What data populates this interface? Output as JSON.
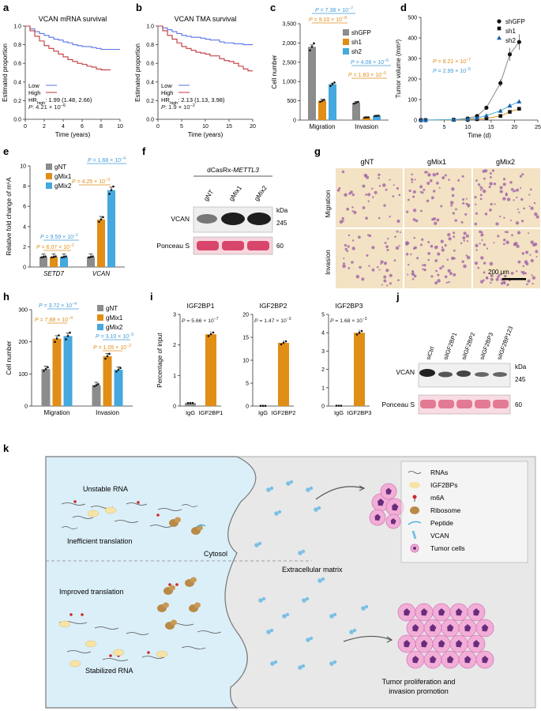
{
  "panel_letters": [
    "a",
    "b",
    "c",
    "d",
    "e",
    "f",
    "g",
    "h",
    "i",
    "j",
    "k"
  ],
  "colors": {
    "low_blue": "#5a74e6",
    "high_red": "#c0373a",
    "gray": "#8c8c8c",
    "orange": "#e08e16",
    "blue": "#45a8de",
    "pval_blue": "#3f9ad8",
    "pval_orange": "#e08e16",
    "cell_bg": "#dff0f8",
    "ecm_bg": "#e9e9e9",
    "ponceau": "#e56f8e",
    "tumor_pink": "#f2aed6",
    "tumor_core": "#6a2d7d"
  },
  "panel_a": {
    "title": "VCAN mRNA survival",
    "ylabel": "Estimated proportion",
    "xlabel": "Time (years)",
    "legend": [
      "Low",
      "High"
    ],
    "hr_label": "HR",
    "hr_sub": "high",
    "hr_value": ": 1.99 (1.48, 2.66)",
    "p_text": "P: 4.21 × 10",
    "p_exp": "−6"
  },
  "panel_b": {
    "title": "VCAN TMA survival",
    "ylabel": "Estimated proportion",
    "xlabel": "Time (years)",
    "legend": [
      "Low",
      "High"
    ],
    "hr_label": "HR",
    "hr_sub": "high",
    "hr_value": ": 2.13 (1.13, 3.98)",
    "p_text": "P: 1.9 × 10",
    "p_exp": "−2"
  },
  "panel_d": {
    "ylabel": "Tumor volume (mm³)",
    "xlabel": "Time (d)",
    "legend": [
      "shGFP",
      "sh1",
      "sh2"
    ],
    "p1": "P = 8.21 × 10",
    "p1_exp": "−7",
    "p2": "P = 2.99 × 10",
    "p2_exp": "−5"
  },
  "panel_f": {
    "header": "dCasRx-",
    "header_gene": "METTL3",
    "lanes": [
      "gNT",
      "gMix1",
      "gMix2"
    ],
    "rows": [
      "VCAN",
      "Ponceau S"
    ],
    "kda": "kDa",
    "mw": [
      "245",
      "60"
    ]
  },
  "panel_g": {
    "cols": [
      "gNT",
      "gMix1",
      "gMix2"
    ],
    "rows": [
      "Migration",
      "Invasion"
    ],
    "scale": "200 μm"
  },
  "panel_j": {
    "lanes": [
      "siCtrl",
      "siIGF2BP1",
      "siIGF2BP2",
      "siIGF2BP3",
      "siIGF2BP123"
    ],
    "rows": [
      "VCAN",
      "Ponceau S"
    ],
    "kda": "kDa",
    "mw": [
      "245",
      "60"
    ]
  },
  "panel_k": {
    "unstable": "Unstable RNA",
    "inefficient": "Inefficient translation",
    "cytosol": "Cytosol",
    "improved": "Improved translation",
    "stabilized": "Stabilized RNA",
    "ecm": "Extracellular matrix",
    "tumor": "Tumor proliferation and",
    "tumor2": "invasion promotion",
    "legend": [
      "RNAs",
      "IGF2BPs",
      "m6A",
      "Ribosome",
      "Peptide",
      "VCAN",
      "Tumor cells"
    ]
  },
  "chart_data": [
    {
      "panel": "a",
      "type": "line",
      "title": "VCAN mRNA survival",
      "xlabel": "Time (years)",
      "ylabel": "Estimated proportion",
      "xlim": [
        0,
        10
      ],
      "ylim": [
        0,
        1.0
      ],
      "xticks": [
        0,
        2,
        4,
        6,
        8,
        10
      ],
      "yticks": [
        0,
        0.2,
        0.4,
        0.6,
        0.8,
        1.0
      ],
      "series": [
        {
          "name": "Low",
          "x": [
            0,
            0.5,
            1,
            1.5,
            2,
            2.5,
            3,
            3.5,
            4,
            4.5,
            5,
            5.5,
            6,
            6.5,
            7,
            7.5,
            8,
            8.5,
            9,
            9.5,
            10
          ],
          "y": [
            1.0,
            0.97,
            0.94,
            0.92,
            0.9,
            0.88,
            0.86,
            0.85,
            0.83,
            0.82,
            0.8,
            0.79,
            0.78,
            0.78,
            0.77,
            0.76,
            0.75,
            0.75,
            0.75,
            0.75,
            0.75
          ]
        },
        {
          "name": "High",
          "x": [
            0,
            0.5,
            1,
            1.5,
            2,
            2.5,
            3,
            3.5,
            4,
            4.5,
            5,
            5.5,
            6,
            6.5,
            7,
            7.5,
            8,
            8.5,
            9
          ],
          "y": [
            1.0,
            0.95,
            0.89,
            0.84,
            0.79,
            0.76,
            0.73,
            0.7,
            0.67,
            0.64,
            0.62,
            0.6,
            0.59,
            0.57,
            0.56,
            0.54,
            0.53,
            0.53,
            0.53
          ]
        }
      ]
    },
    {
      "panel": "b",
      "type": "line",
      "title": "VCAN TMA survival",
      "xlabel": "Time (years)",
      "ylabel": "Estimated proportion",
      "xlim": [
        0,
        20
      ],
      "ylim": [
        0,
        1.0
      ],
      "xticks": [
        0,
        5,
        10,
        15,
        20
      ],
      "yticks": [
        0,
        0.2,
        0.4,
        0.6,
        0.8,
        1.0
      ],
      "series": [
        {
          "name": "Low",
          "x": [
            0,
            1,
            2,
            3,
            4,
            5,
            6,
            7,
            8,
            9,
            10,
            11,
            12,
            13,
            14,
            15,
            16,
            17,
            18,
            19,
            20
          ],
          "y": [
            1.0,
            0.98,
            0.96,
            0.94,
            0.92,
            0.9,
            0.89,
            0.88,
            0.88,
            0.87,
            0.86,
            0.85,
            0.85,
            0.83,
            0.82,
            0.82,
            0.81,
            0.81,
            0.8,
            0.8,
            0.8
          ]
        },
        {
          "name": "High",
          "x": [
            0,
            1,
            2,
            3,
            4,
            5,
            6,
            7,
            8,
            9,
            10,
            11,
            12,
            13,
            14,
            15,
            16,
            17,
            18,
            19,
            20
          ],
          "y": [
            1.0,
            0.95,
            0.9,
            0.86,
            0.82,
            0.78,
            0.76,
            0.74,
            0.72,
            0.71,
            0.7,
            0.68,
            0.68,
            0.65,
            0.63,
            0.62,
            0.6,
            0.57,
            0.54,
            0.52,
            0.52
          ]
        }
      ]
    },
    {
      "panel": "c",
      "type": "bar",
      "ylabel": "Cell number",
      "categories": [
        "Migration",
        "Invasion"
      ],
      "ylim": [
        0,
        2500
      ],
      "yticks": [
        0,
        500,
        1000,
        1500,
        2000,
        2500
      ],
      "series": [
        {
          "name": "shGFP",
          "values": [
            1900,
            450
          ],
          "err": [
            50,
            30
          ]
        },
        {
          "name": "sh1",
          "values": [
            500,
            70
          ],
          "err": [
            40,
            15
          ]
        },
        {
          "name": "sh2",
          "values": [
            930,
            110
          ],
          "err": [
            30,
            15
          ]
        }
      ],
      "annotations": [
        {
          "text": "P = 7.38 × 10",
          "exp": "−7",
          "color": "blue"
        },
        {
          "text": "P = 9.10 × 10",
          "exp": "−8",
          "color": "orange"
        },
        {
          "text": "P = 4.08 × 10",
          "exp": "−5",
          "color": "blue"
        },
        {
          "text": "P = 1.83 × 10",
          "exp": "−6",
          "color": "orange"
        }
      ]
    },
    {
      "panel": "d",
      "type": "line",
      "xlabel": "Time (d)",
      "ylabel": "Tumor volume (mm³)",
      "xlim": [
        0,
        25
      ],
      "ylim": [
        0,
        500
      ],
      "xticks": [
        0,
        5,
        10,
        15,
        20,
        25
      ],
      "yticks": [
        0,
        100,
        200,
        300,
        400,
        500
      ],
      "series": [
        {
          "name": "shGFP",
          "x": [
            0,
            1,
            7,
            10,
            12,
            14,
            17,
            19,
            21
          ],
          "y": [
            0,
            0,
            2,
            8,
            20,
            60,
            180,
            320,
            380
          ]
        },
        {
          "name": "sh1",
          "x": [
            0,
            1,
            7,
            10,
            12,
            14,
            17,
            19,
            21
          ],
          "y": [
            0,
            0,
            1,
            2,
            4,
            8,
            20,
            40,
            55
          ]
        },
        {
          "name": "sh2",
          "x": [
            0,
            1,
            7,
            10,
            12,
            14,
            17,
            19,
            21
          ],
          "y": [
            0,
            0,
            2,
            5,
            10,
            22,
            45,
            70,
            90
          ]
        }
      ]
    },
    {
      "panel": "e",
      "type": "bar",
      "ylabel": "Relative fold change of m⁶A",
      "categories": [
        "SETD7",
        "VCAN"
      ],
      "ylim": [
        0,
        10
      ],
      "yticks": [
        0,
        2,
        4,
        6,
        8,
        10
      ],
      "series": [
        {
          "name": "gNT",
          "values": [
            1.0,
            1.0
          ]
        },
        {
          "name": "gMix1",
          "values": [
            1.0,
            4.7
          ]
        },
        {
          "name": "gMix2",
          "values": [
            1.0,
            7.6
          ]
        }
      ],
      "annotations": [
        {
          "text": "P = 1.68 × 10",
          "exp": "−4",
          "color": "blue"
        },
        {
          "text": "P = 4.25 × 10",
          "exp": "−3",
          "color": "orange"
        },
        {
          "text": "P = 9.59 × 10",
          "exp": "−1",
          "color": "blue"
        },
        {
          "text": "P = 6.07 × 10",
          "exp": "−1",
          "color": "orange"
        }
      ]
    },
    {
      "panel": "h",
      "type": "bar",
      "ylabel": "Cell number",
      "categories": [
        "Migration",
        "Invasion"
      ],
      "ylim": [
        0,
        300
      ],
      "yticks": [
        0,
        100,
        200,
        300
      ],
      "series": [
        {
          "name": "gNT",
          "values": [
            115,
            65
          ]
        },
        {
          "name": "gMix1",
          "values": [
            210,
            155
          ]
        },
        {
          "name": "gMix2",
          "values": [
            218,
            113
          ]
        }
      ],
      "annotations": [
        {
          "text": "P = 3.72 × 10",
          "exp": "−4",
          "color": "blue"
        },
        {
          "text": "P = 7.88 × 10",
          "exp": "−4",
          "color": "orange"
        },
        {
          "text": "P = 3.10 × 10",
          "exp": "−3",
          "color": "blue"
        },
        {
          "text": "P = 1.05 × 10",
          "exp": "−2",
          "color": "orange"
        }
      ]
    },
    {
      "panel": "i",
      "type": "bar",
      "ylabel": "Percentage of input",
      "subplots": [
        {
          "title": "IGF2BP1",
          "categories": [
            "IgG",
            "IGF2BP1"
          ],
          "values": [
            0.1,
            2.35
          ],
          "ylim": [
            0,
            3
          ],
          "yticks": [
            0,
            1,
            2,
            3
          ],
          "p": "P = 5.66 × 10",
          "p_exp": "−7"
        },
        {
          "title": "IGF2BP2",
          "categories": [
            "IgG",
            "IGF2BP2"
          ],
          "values": [
            0.05,
            13.8
          ],
          "ylim": [
            0,
            20
          ],
          "yticks": [
            0,
            5,
            10,
            15,
            20
          ],
          "p": "P = 1.47 × 10",
          "p_exp": "−3"
        },
        {
          "title": "IGF2BP3",
          "categories": [
            "IgG",
            "IGF2BP3"
          ],
          "values": [
            0.02,
            4.0
          ],
          "ylim": [
            0,
            5
          ],
          "yticks": [
            0,
            1,
            2,
            3,
            4,
            5
          ],
          "p": "P = 1.68 × 10",
          "p_exp": "−3"
        }
      ]
    }
  ]
}
